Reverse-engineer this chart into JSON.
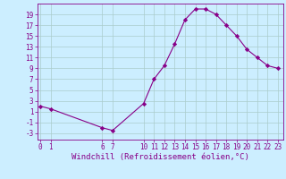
{
  "x": [
    0,
    1,
    6,
    7,
    10,
    11,
    12,
    13,
    14,
    15,
    16,
    17,
    18,
    19,
    20,
    21,
    22,
    23
  ],
  "y": [
    2.0,
    1.5,
    -2.0,
    -2.5,
    2.5,
    7.0,
    9.5,
    13.5,
    18.0,
    20.0,
    20.0,
    19.0,
    17.0,
    15.0,
    12.5,
    11.0,
    9.5,
    9.0
  ],
  "line_color": "#880088",
  "marker_color": "#880088",
  "bg_color": "#cceeff",
  "grid_color": "#aacccc",
  "xlabel": "Windchill (Refroidissement éolien,°C)",
  "xticks": [
    0,
    1,
    6,
    7,
    10,
    11,
    12,
    13,
    14,
    15,
    16,
    17,
    18,
    19,
    20,
    21,
    22,
    23
  ],
  "yticks": [
    -3,
    -1,
    1,
    3,
    5,
    7,
    9,
    11,
    13,
    15,
    17,
    19
  ],
  "xlim": [
    -0.3,
    23.5
  ],
  "ylim": [
    -4.2,
    21.0
  ],
  "tick_fontsize": 5.5,
  "xlabel_fontsize": 6.5
}
